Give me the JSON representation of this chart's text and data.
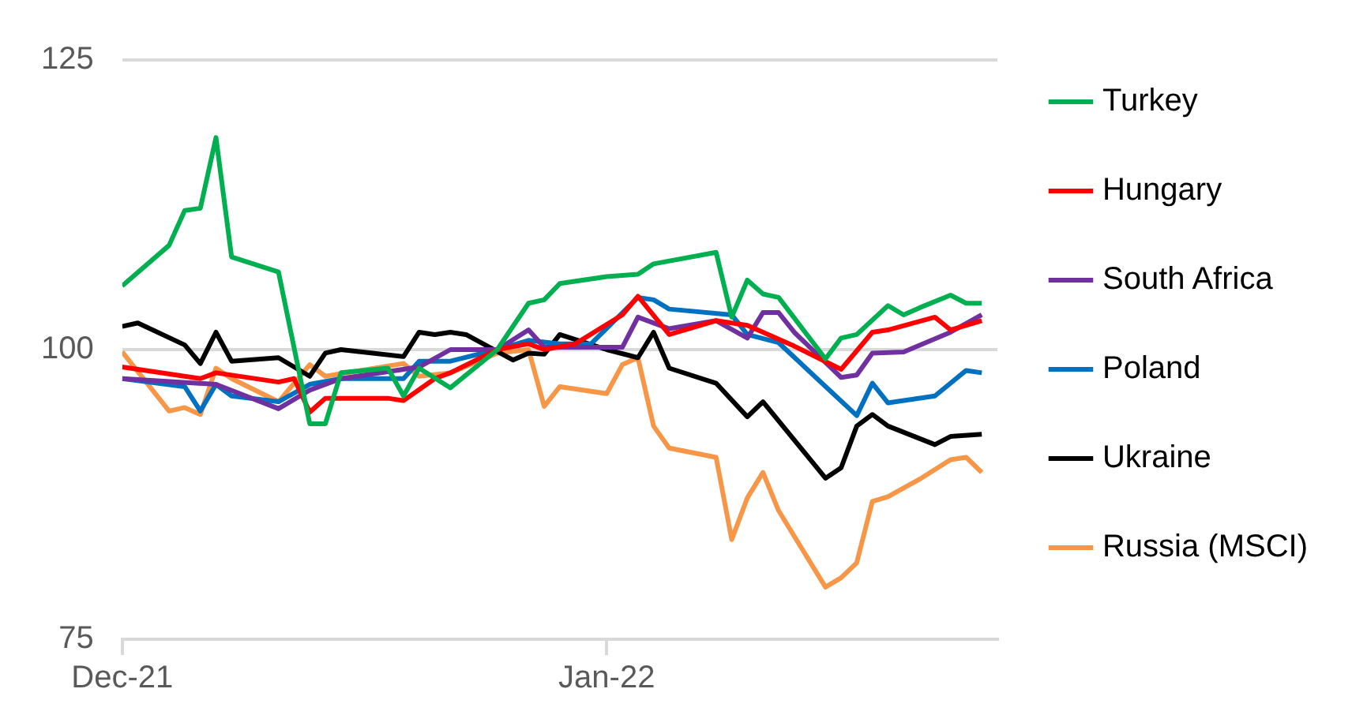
{
  "chart_data": {
    "type": "line",
    "xlim": [
      "2021-12-01",
      "2022-01-26"
    ],
    "xticks": [
      {
        "value": "2021-12-01",
        "label": "Dec-21"
      },
      {
        "value": "2022-01-01",
        "label": "Jan-22"
      }
    ],
    "ylim": [
      75,
      125
    ],
    "yticks": [
      75,
      100,
      125
    ],
    "grid": "y",
    "legend": "right",
    "marker": "none",
    "line_style": "solid",
    "series": [
      {
        "name": "Turkey",
        "color": "#00b050",
        "x": [
          "2021-12-01",
          "2021-12-04",
          "2021-12-05",
          "2021-12-06",
          "2021-12-07",
          "2021-12-08",
          "2021-12-11",
          "2021-12-13",
          "2021-12-14",
          "2021-12-15",
          "2021-12-18",
          "2021-12-19",
          "2021-12-20",
          "2021-12-22",
          "2021-12-25",
          "2021-12-27",
          "2021-12-28",
          "2021-12-29",
          "2022-01-01",
          "2022-01-03",
          "2022-01-04",
          "2022-01-08",
          "2022-01-09",
          "2022-01-10",
          "2022-01-11",
          "2022-01-12",
          "2022-01-15",
          "2022-01-16",
          "2022-01-17",
          "2022-01-19",
          "2022-01-20",
          "2022-01-21",
          "2022-01-23",
          "2022-01-24",
          "2022-01-25"
        ],
        "values": [
          105.5,
          109,
          112,
          112.2,
          118.3,
          108,
          106.7,
          93.6,
          93.6,
          98,
          98.4,
          96,
          98.4,
          96.7,
          100,
          104,
          104.3,
          105.7,
          106.3,
          106.5,
          107.4,
          108.4,
          102.8,
          106,
          104.8,
          104.5,
          99.2,
          101,
          101.3,
          103.8,
          103,
          103.6,
          104.7,
          104,
          104
        ]
      },
      {
        "name": "Hungary",
        "color": "#ff0000",
        "x": [
          "2021-12-01",
          "2021-12-06",
          "2021-12-07",
          "2021-12-11",
          "2021-12-12",
          "2021-12-13",
          "2021-12-14",
          "2021-12-18",
          "2021-12-19",
          "2021-12-21",
          "2021-12-22",
          "2021-12-25",
          "2021-12-27",
          "2021-12-28",
          "2021-12-30",
          "2022-01-02",
          "2022-01-03",
          "2022-01-05",
          "2022-01-08",
          "2022-01-10",
          "2022-01-13",
          "2022-01-16",
          "2022-01-18",
          "2022-01-19",
          "2022-01-22",
          "2022-01-23",
          "2022-01-25"
        ],
        "values": [
          98.5,
          97.5,
          98,
          97.2,
          97.5,
          94.6,
          95.8,
          95.8,
          95.6,
          97.5,
          98,
          100,
          100.5,
          100,
          100.5,
          103,
          104.6,
          101.3,
          102.5,
          102.1,
          100.3,
          98.3,
          101.5,
          101.7,
          102.8,
          101.7,
          102.5
        ]
      },
      {
        "name": "South Africa",
        "color": "#7030a0",
        "x": [
          "2021-12-01",
          "2021-12-07",
          "2021-12-11",
          "2021-12-13",
          "2021-12-15",
          "2021-12-20",
          "2021-12-22",
          "2021-12-25",
          "2021-12-27",
          "2021-12-28",
          "2022-01-02",
          "2022-01-03",
          "2022-01-05",
          "2022-01-08",
          "2022-01-10",
          "2022-01-11",
          "2022-01-12",
          "2022-01-13",
          "2022-01-16",
          "2022-01-17",
          "2022-01-18",
          "2022-01-20",
          "2022-01-23",
          "2022-01-25"
        ],
        "values": [
          97.5,
          97,
          94.9,
          96.5,
          97.5,
          98.5,
          100,
          100,
          101.7,
          100.2,
          100.2,
          102.8,
          101.8,
          102.5,
          101,
          103.2,
          103.2,
          101.5,
          97.6,
          97.8,
          99.7,
          99.8,
          101.5,
          103
        ]
      },
      {
        "name": "Poland",
        "color": "#0070c0",
        "x": [
          "2021-12-01",
          "2021-12-05",
          "2021-12-06",
          "2021-12-07",
          "2021-12-08",
          "2021-12-11",
          "2021-12-13",
          "2021-12-15",
          "2021-12-19",
          "2021-12-20",
          "2021-12-22",
          "2021-12-25",
          "2021-12-27",
          "2021-12-29",
          "2021-12-31",
          "2022-01-03",
          "2022-01-04",
          "2022-01-05",
          "2022-01-09",
          "2022-01-10",
          "2022-01-12",
          "2022-01-17",
          "2022-01-18",
          "2022-01-19",
          "2022-01-22",
          "2022-01-24",
          "2022-01-25"
        ],
        "values": [
          97.5,
          96.8,
          94.7,
          97,
          96,
          95.5,
          97,
          97.5,
          97.5,
          99,
          99,
          100,
          100.8,
          100.5,
          100.5,
          104.5,
          104.3,
          103.5,
          103,
          101.3,
          100.6,
          94.3,
          97.1,
          95.4,
          96,
          98.2,
          98
        ]
      },
      {
        "name": "Ukraine",
        "color": "#000000",
        "x": [
          "2021-12-01",
          "2021-12-02",
          "2021-12-05",
          "2021-12-06",
          "2021-12-07",
          "2021-12-08",
          "2021-12-11",
          "2021-12-13",
          "2021-12-14",
          "2021-12-15",
          "2021-12-19",
          "2021-12-20",
          "2021-12-21",
          "2021-12-22",
          "2021-12-23",
          "2021-12-26",
          "2021-12-27",
          "2021-12-28",
          "2021-12-29",
          "2022-01-01",
          "2022-01-03",
          "2022-01-04",
          "2022-01-05",
          "2022-01-08",
          "2022-01-10",
          "2022-01-11",
          "2022-01-15",
          "2022-01-16",
          "2022-01-17",
          "2022-01-18",
          "2022-01-19",
          "2022-01-22",
          "2022-01-23",
          "2022-01-25"
        ],
        "values": [
          102,
          102.3,
          100.4,
          98.8,
          101.5,
          99,
          99.3,
          97.7,
          99.7,
          100,
          99.4,
          101.5,
          101.3,
          101.5,
          101.3,
          99.1,
          99.7,
          99.6,
          101.3,
          100,
          99.3,
          101.5,
          98.4,
          97.1,
          94.2,
          95.5,
          88.9,
          89.8,
          93.4,
          94.4,
          93.4,
          91.8,
          92.5,
          92.7
        ]
      },
      {
        "name": "Russia (MSCI)",
        "color": "#f79646",
        "x": [
          "2021-12-01",
          "2021-12-04",
          "2021-12-05",
          "2021-12-06",
          "2021-12-07",
          "2021-12-08",
          "2021-12-11",
          "2021-12-13",
          "2021-12-14",
          "2021-12-19",
          "2021-12-20",
          "2021-12-22",
          "2021-12-25",
          "2021-12-27",
          "2021-12-28",
          "2021-12-29",
          "2022-01-01",
          "2022-01-02",
          "2022-01-03",
          "2022-01-04",
          "2022-01-05",
          "2022-01-08",
          "2022-01-09",
          "2022-01-10",
          "2022-01-11",
          "2022-01-12",
          "2022-01-15",
          "2022-01-16",
          "2022-01-17",
          "2022-01-18",
          "2022-01-19",
          "2022-01-21",
          "2022-01-23",
          "2022-01-24",
          "2022-01-25"
        ],
        "values": [
          99.8,
          94.7,
          95,
          94.4,
          98.4,
          97.5,
          95.5,
          98.7,
          97.7,
          98.8,
          97.7,
          98,
          99.7,
          100,
          95.1,
          96.8,
          96.2,
          98.7,
          99.3,
          93.4,
          91.5,
          90.7,
          83.6,
          87.2,
          89.4,
          86.1,
          79.5,
          80.3,
          81.6,
          86.9,
          87.3,
          88.8,
          90.5,
          90.7,
          89.4
        ]
      }
    ]
  }
}
